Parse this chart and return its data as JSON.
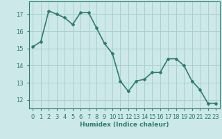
{
  "x": [
    0,
    1,
    2,
    3,
    4,
    5,
    6,
    7,
    8,
    9,
    10,
    11,
    12,
    13,
    14,
    15,
    16,
    17,
    18,
    19,
    20,
    21,
    22,
    23
  ],
  "y": [
    15.1,
    15.4,
    17.2,
    17.0,
    16.8,
    16.4,
    17.1,
    17.1,
    16.2,
    15.3,
    14.7,
    13.1,
    12.5,
    13.1,
    13.2,
    13.6,
    13.6,
    14.4,
    14.4,
    14.0,
    13.1,
    12.6,
    11.8,
    11.8
  ],
  "line_color": "#2e7d6e",
  "marker": "D",
  "marker_size": 2.0,
  "bg_color": "#cce8e8",
  "grid_color": "#aacfcf",
  "xlabel": "Humidex (Indice chaleur)",
  "ylabel": "",
  "xlim": [
    -0.5,
    23.5
  ],
  "ylim": [
    11.5,
    17.75
  ],
  "yticks": [
    12,
    13,
    14,
    15,
    16,
    17
  ],
  "xticks": [
    0,
    1,
    2,
    3,
    4,
    5,
    6,
    7,
    8,
    9,
    10,
    11,
    12,
    13,
    14,
    15,
    16,
    17,
    18,
    19,
    20,
    21,
    22,
    23
  ],
  "xlabel_fontsize": 6.5,
  "tick_fontsize": 6.0,
  "line_width": 1.2
}
